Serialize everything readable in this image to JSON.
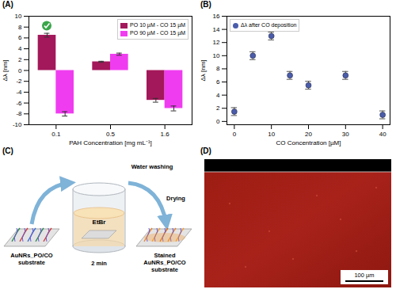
{
  "chart_data": [
    {
      "type": "bar",
      "title": "(A)",
      "categories": [
        "0.1",
        "0.5",
        "1.6"
      ],
      "x_label": "PAH Concentration [mg mL⁻¹]",
      "y_label": "Δλ [nm]",
      "series": [
        {
          "name": "PO 10 µM - CO 15 µM",
          "color": "#a3185a",
          "values": [
            6.5,
            1.6,
            -5.5
          ],
          "errors": [
            0.35,
            0.1,
            0.35
          ]
        },
        {
          "name": "PO 90 µM - CO 15 µM",
          "color": "#f03cf0",
          "values": [
            -8.0,
            3.0,
            -7.0
          ],
          "errors": [
            0.4,
            0.2,
            0.45
          ]
        }
      ],
      "ylim": [
        -10,
        10
      ],
      "yticks": [
        -10,
        -8,
        -6,
        -4,
        -2,
        0,
        2,
        4,
        6,
        8,
        10
      ],
      "legend": "upper right",
      "grid": false
    },
    {
      "type": "scatter",
      "title": "(B)",
      "x": [
        0,
        5,
        10,
        15,
        20,
        30,
        40
      ],
      "x_label": "CO Concentration [µM]",
      "y_label": "Δλ [nm]",
      "series": [
        {
          "name": "Δλ after CO deposition",
          "color": "#4a5cab",
          "marker": "circle",
          "values": [
            1.5,
            10.0,
            13.0,
            7.0,
            5.5,
            7.0,
            1.0
          ],
          "errors": [
            0.6,
            0.6,
            0.6,
            0.6,
            0.6,
            0.6,
            0.6
          ]
        }
      ],
      "xlim": [
        -2,
        42
      ],
      "xticks": [
        0,
        10,
        20,
        30,
        40
      ],
      "ylim": [
        -0.5,
        16
      ],
      "yticks": [
        0,
        2,
        4,
        6,
        8,
        10,
        12,
        14,
        16
      ],
      "legend": "upper left",
      "grid": false
    }
  ],
  "diagram": {
    "label": "(C)",
    "substrate_label": [
      "AuNRs_PO/CO",
      "substrate"
    ],
    "reagent": "EtBr",
    "time": "2 min",
    "steps": [
      "Water washing",
      "Drying"
    ],
    "stained_label": [
      "Stained",
      "AuNRs_PO/CO",
      "substrate"
    ]
  },
  "image": {
    "label": "(D)",
    "scale_bar": "100 µm"
  }
}
